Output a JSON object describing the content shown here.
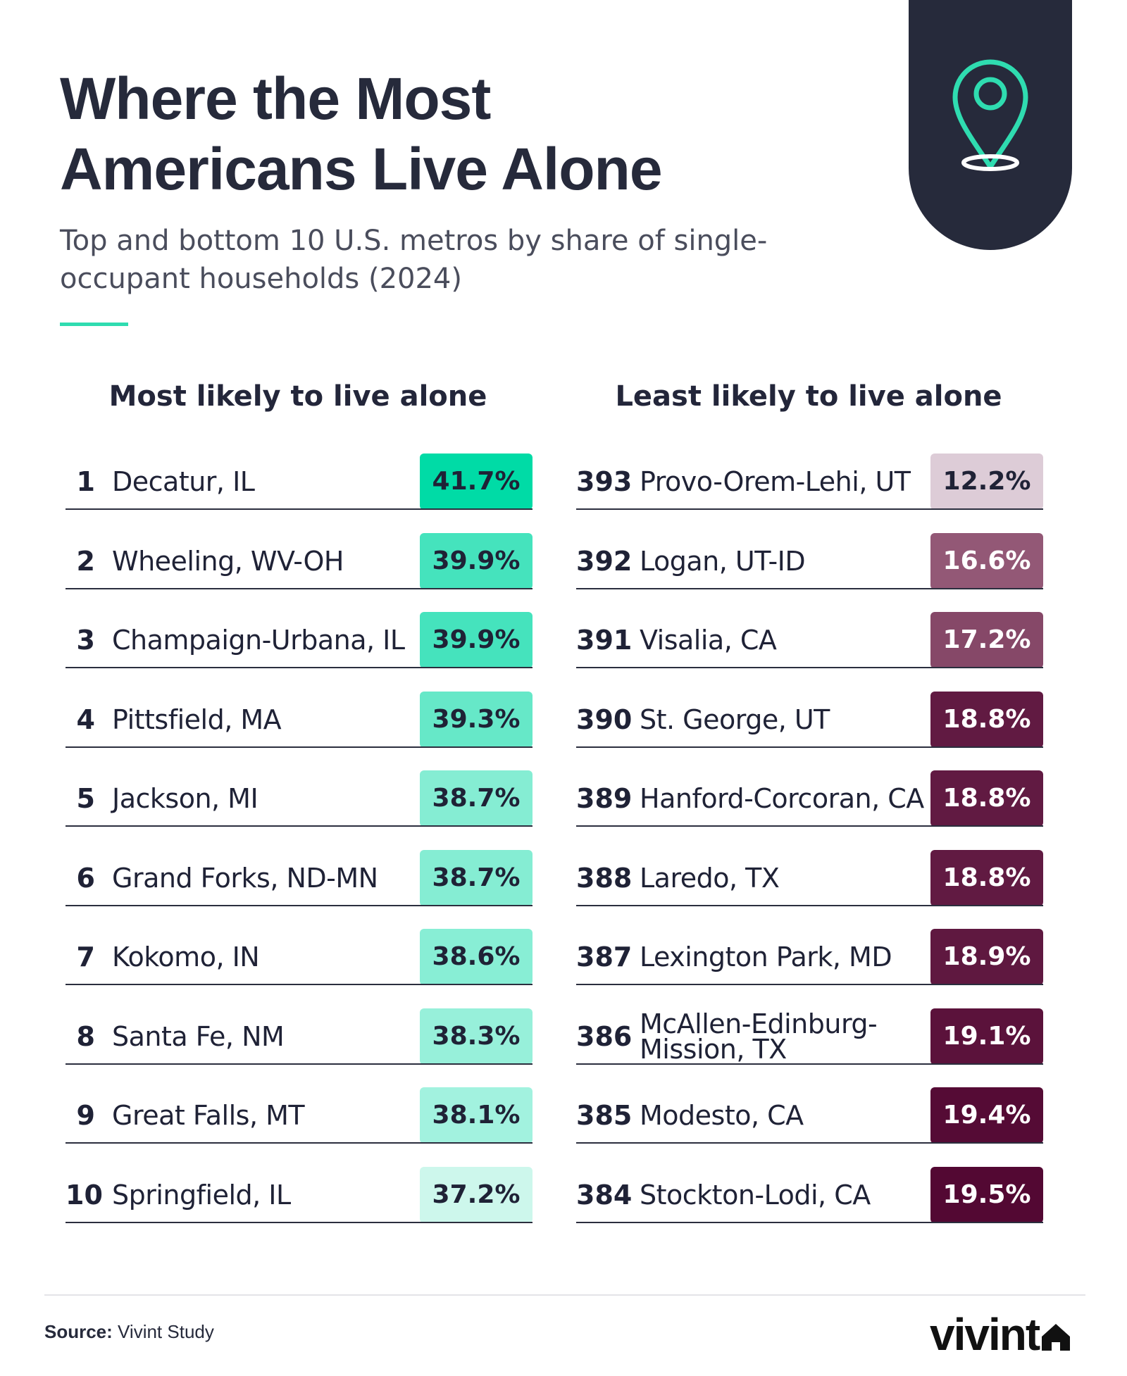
{
  "header": {
    "title_line1": "Where the Most",
    "title_line2": "Americans Live Alone",
    "subtitle": "Top and bottom 10 U.S. metros by share of single-occupant households (2024)"
  },
  "icons": {
    "header": "map-pin-icon",
    "logo": "house-icon"
  },
  "colors": {
    "accent": "#2fdcb0",
    "dark_navy": "#262a3b"
  },
  "chart_data": {
    "type": "table",
    "unit": "%",
    "tables": [
      {
        "heading": "Most likely to live alone",
        "rows": [
          {
            "rank": "1",
            "metro": "Decatur, IL",
            "value": 41.7,
            "label": "41.7%",
            "color": "#00dba6",
            "text_color": "#1f2236"
          },
          {
            "rank": "2",
            "metro": "Wheeling, WV-OH",
            "value": 39.9,
            "label": "39.9%",
            "color": "#45e3bd",
            "text_color": "#1f2236"
          },
          {
            "rank": "3",
            "metro": "Champaign-Urbana, IL",
            "value": 39.9,
            "label": "39.9%",
            "color": "#45e3bd",
            "text_color": "#1f2236"
          },
          {
            "rank": "4",
            "metro": "Pittsfield, MA",
            "value": 39.3,
            "label": "39.3%",
            "color": "#66e8c8",
            "text_color": "#1f2236"
          },
          {
            "rank": "5",
            "metro": "Jackson, MI",
            "value": 38.7,
            "label": "38.7%",
            "color": "#85edd3",
            "text_color": "#1f2236"
          },
          {
            "rank": "6",
            "metro": "Grand Forks, ND-MN",
            "value": 38.7,
            "label": "38.7%",
            "color": "#85edd3",
            "text_color": "#1f2236"
          },
          {
            "rank": "7",
            "metro": "Kokomo, IN",
            "value": 38.6,
            "label": "38.6%",
            "color": "#88eed5",
            "text_color": "#1f2236"
          },
          {
            "rank": "8",
            "metro": "Santa Fe, NM",
            "value": 38.3,
            "label": "38.3%",
            "color": "#97f0da",
            "text_color": "#1f2236"
          },
          {
            "rank": "9",
            "metro": "Great Falls, MT",
            "value": 38.1,
            "label": "38.1%",
            "color": "#a2f2df",
            "text_color": "#1f2236"
          },
          {
            "rank": "10",
            "metro": "Springfield, IL",
            "value": 37.2,
            "label": "37.2%",
            "color": "#cdf7ec",
            "text_color": "#1f2236"
          }
        ]
      },
      {
        "heading": "Least likely to live alone",
        "rows": [
          {
            "rank": "393",
            "metro": "Provo-Orem-Lehi, UT",
            "value": 12.2,
            "label": "12.2%",
            "color": "#ddccd7",
            "text_color": "#1f2236"
          },
          {
            "rank": "392",
            "metro": "Logan, UT-ID",
            "value": 16.6,
            "label": "16.6%",
            "color": "#935876",
            "text_color": "#ffffff"
          },
          {
            "rank": "391",
            "metro": "Visalia, CA",
            "value": 17.2,
            "label": "17.2%",
            "color": "#864868",
            "text_color": "#ffffff"
          },
          {
            "rank": "390",
            "metro": "St. George, UT",
            "value": 18.8,
            "label": "18.8%",
            "color": "#611a42",
            "text_color": "#ffffff"
          },
          {
            "rank": "389",
            "metro": "Hanford-Corcoran, CA",
            "value": 18.8,
            "label": "18.8%",
            "color": "#611a42",
            "text_color": "#ffffff"
          },
          {
            "rank": "388",
            "metro": "Laredo, TX",
            "value": 18.8,
            "label": "18.8%",
            "color": "#611a42",
            "text_color": "#ffffff"
          },
          {
            "rank": "387",
            "metro": "Lexington Park, MD",
            "value": 18.9,
            "label": "18.9%",
            "color": "#5f1840",
            "text_color": "#ffffff"
          },
          {
            "rank": "386",
            "metro": "McAllen-Edinburg-Mission, TX",
            "value": 19.1,
            "label": "19.1%",
            "color": "#5b123b",
            "text_color": "#ffffff"
          },
          {
            "rank": "385",
            "metro": "Modesto, CA",
            "value": 19.4,
            "label": "19.4%",
            "color": "#550b35",
            "text_color": "#ffffff"
          },
          {
            "rank": "384",
            "metro": "Stockton-Lodi, CA",
            "value": 19.5,
            "label": "19.5%",
            "color": "#530833",
            "text_color": "#ffffff"
          }
        ]
      }
    ]
  },
  "footer": {
    "source_label": "Source:",
    "source_text": "Vivint Study",
    "logo_text": "vivint"
  }
}
